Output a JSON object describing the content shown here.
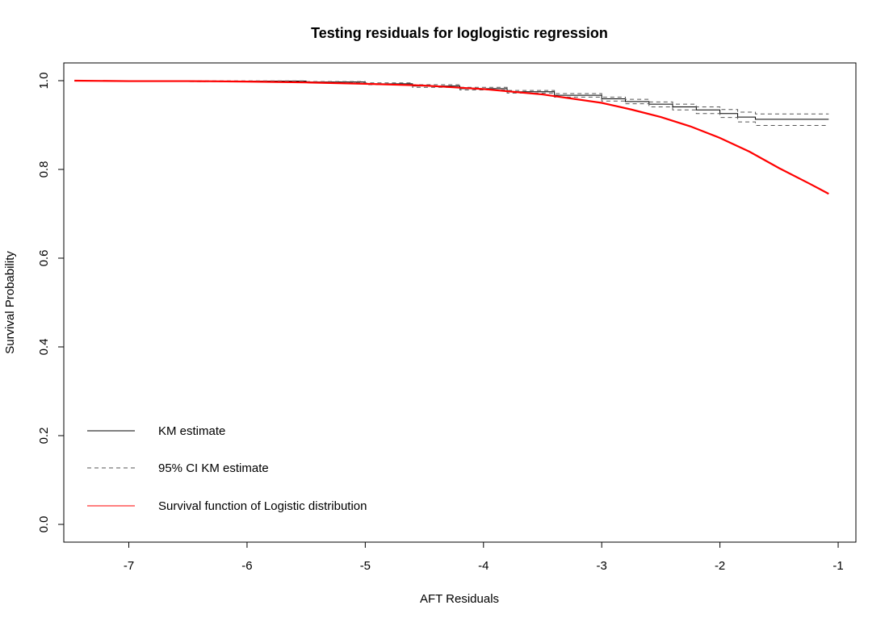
{
  "chart_data": {
    "type": "line",
    "title": "Testing residuals for loglogistic regression",
    "xlabel": "AFT Residuals",
    "ylabel": "Survival Probability",
    "xlim": [
      -7.55,
      -0.85
    ],
    "ylim": [
      -0.04,
      1.04
    ],
    "x_ticks": [
      -7,
      -6,
      -5,
      -4,
      -3,
      -2,
      -1
    ],
    "y_ticks": [
      0.0,
      0.2,
      0.4,
      0.6,
      0.8,
      1.0
    ],
    "x_tick_labels": [
      "-7",
      "-6",
      "-5",
      "-4",
      "-3",
      "-2",
      "-1"
    ],
    "y_tick_labels": [
      "0.0",
      "0.2",
      "0.4",
      "0.6",
      "0.8",
      "1.0"
    ],
    "grid": false,
    "legend_position": "bottom-left",
    "series": [
      {
        "name": "KM estimate",
        "color": "#000000",
        "style": "solid",
        "step": true,
        "points": [
          [
            -7.46,
            1.0
          ],
          [
            -6.5,
            0.999
          ],
          [
            -5.5,
            0.997
          ],
          [
            -5.0,
            0.993
          ],
          [
            -4.6,
            0.988
          ],
          [
            -4.2,
            0.982
          ],
          [
            -3.8,
            0.975
          ],
          [
            -3.4,
            0.967
          ],
          [
            -3.0,
            0.959
          ],
          [
            -2.8,
            0.953
          ],
          [
            -2.6,
            0.947
          ],
          [
            -2.4,
            0.941
          ],
          [
            -2.2,
            0.934
          ],
          [
            -2.0,
            0.926
          ],
          [
            -1.85,
            0.918
          ],
          [
            -1.7,
            0.913
          ],
          [
            -1.08,
            0.913
          ]
        ]
      },
      {
        "name": "95% CI KM estimate",
        "color": "#555555",
        "style": "dashed",
        "step": true,
        "points": [
          [
            -7.46,
            1.0
          ],
          [
            -6.5,
            0.9995
          ],
          [
            -5.5,
            0.998
          ],
          [
            -5.0,
            0.995
          ],
          [
            -4.6,
            0.991
          ],
          [
            -4.2,
            0.985
          ],
          [
            -3.8,
            0.978
          ],
          [
            -3.4,
            0.971
          ],
          [
            -3.0,
            0.963
          ],
          [
            -2.8,
            0.958
          ],
          [
            -2.6,
            0.952
          ],
          [
            -2.4,
            0.947
          ],
          [
            -2.2,
            0.941
          ],
          [
            -2.0,
            0.935
          ],
          [
            -1.85,
            0.929
          ],
          [
            -1.7,
            0.925
          ],
          [
            -1.08,
            0.925
          ]
        ]
      },
      {
        "name": "95% CI KM estimate (lower)",
        "color": "#555555",
        "style": "dashed",
        "step": true,
        "points": [
          [
            -7.46,
            1.0
          ],
          [
            -6.5,
            0.998
          ],
          [
            -5.5,
            0.996
          ],
          [
            -5.0,
            0.991
          ],
          [
            -4.6,
            0.985
          ],
          [
            -4.2,
            0.979
          ],
          [
            -3.8,
            0.972
          ],
          [
            -3.4,
            0.963
          ],
          [
            -3.0,
            0.954
          ],
          [
            -2.8,
            0.948
          ],
          [
            -2.6,
            0.941
          ],
          [
            -2.4,
            0.934
          ],
          [
            -2.2,
            0.926
          ],
          [
            -2.0,
            0.917
          ],
          [
            -1.85,
            0.907
          ],
          [
            -1.7,
            0.899
          ],
          [
            -1.08,
            0.899
          ]
        ]
      },
      {
        "name": "Survival function of Logistic distribution",
        "color": "#ff0000",
        "style": "solid",
        "step": false,
        "points": [
          [
            -7.46,
            1.0
          ],
          [
            -7.0,
            0.999
          ],
          [
            -6.5,
            0.999
          ],
          [
            -6.0,
            0.998
          ],
          [
            -5.5,
            0.996
          ],
          [
            -5.0,
            0.993
          ],
          [
            -4.5,
            0.989
          ],
          [
            -4.0,
            0.981
          ],
          [
            -3.5,
            0.969
          ],
          [
            -3.0,
            0.95
          ],
          [
            -2.75,
            0.935
          ],
          [
            -2.5,
            0.918
          ],
          [
            -2.25,
            0.897
          ],
          [
            -2.0,
            0.871
          ],
          [
            -1.75,
            0.84
          ],
          [
            -1.5,
            0.803
          ],
          [
            -1.25,
            0.769
          ],
          [
            -1.08,
            0.745
          ]
        ]
      }
    ],
    "legend_entries": [
      {
        "label": "KM estimate",
        "color": "#000000",
        "style": "solid"
      },
      {
        "label": "95% CI KM estimate",
        "color": "#555555",
        "style": "dashed"
      },
      {
        "label": "Survival function of Logistic distribution",
        "color": "#ff0000",
        "style": "solid"
      }
    ]
  }
}
